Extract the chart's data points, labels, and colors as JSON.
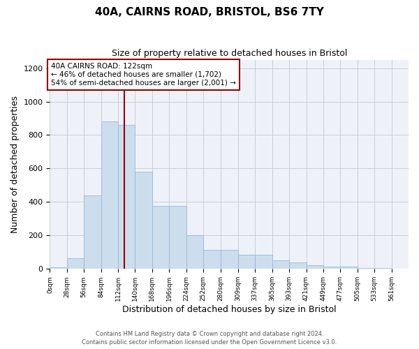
{
  "title1": "40A, CAIRNS ROAD, BRISTOL, BS6 7TY",
  "title2": "Size of property relative to detached houses in Bristol",
  "xlabel": "Distribution of detached houses by size in Bristol",
  "ylabel": "Number of detached properties",
  "bar_color": "#ccdded",
  "bar_edgecolor": "#9ab8d8",
  "grid_color": "#c8ccd8",
  "vline_color": "#990000",
  "vline_x": 122,
  "bin_edges": [
    0,
    28,
    56,
    84,
    112,
    140,
    168,
    196,
    224,
    252,
    280,
    309,
    337,
    365,
    393,
    421,
    449,
    477,
    505,
    533,
    561
  ],
  "bar_heights": [
    10,
    65,
    440,
    880,
    860,
    580,
    375,
    375,
    200,
    115,
    115,
    85,
    85,
    50,
    40,
    22,
    15,
    12,
    5,
    5
  ],
  "annotation_title": "40A CAIRNS ROAD: 122sqm",
  "annotation_line1": "← 46% of detached houses are smaller (1,702)",
  "annotation_line2": "54% of semi-detached houses are larger (2,001) →",
  "footer1": "Contains HM Land Registry data © Crown copyright and database right 2024.",
  "footer2": "Contains public sector information licensed under the Open Government Licence v3.0.",
  "ylim": [
    0,
    1250
  ],
  "yticks": [
    0,
    200,
    400,
    600,
    800,
    1000,
    1200
  ],
  "xlim": [
    0,
    589
  ],
  "background_color": "#eef2f8"
}
